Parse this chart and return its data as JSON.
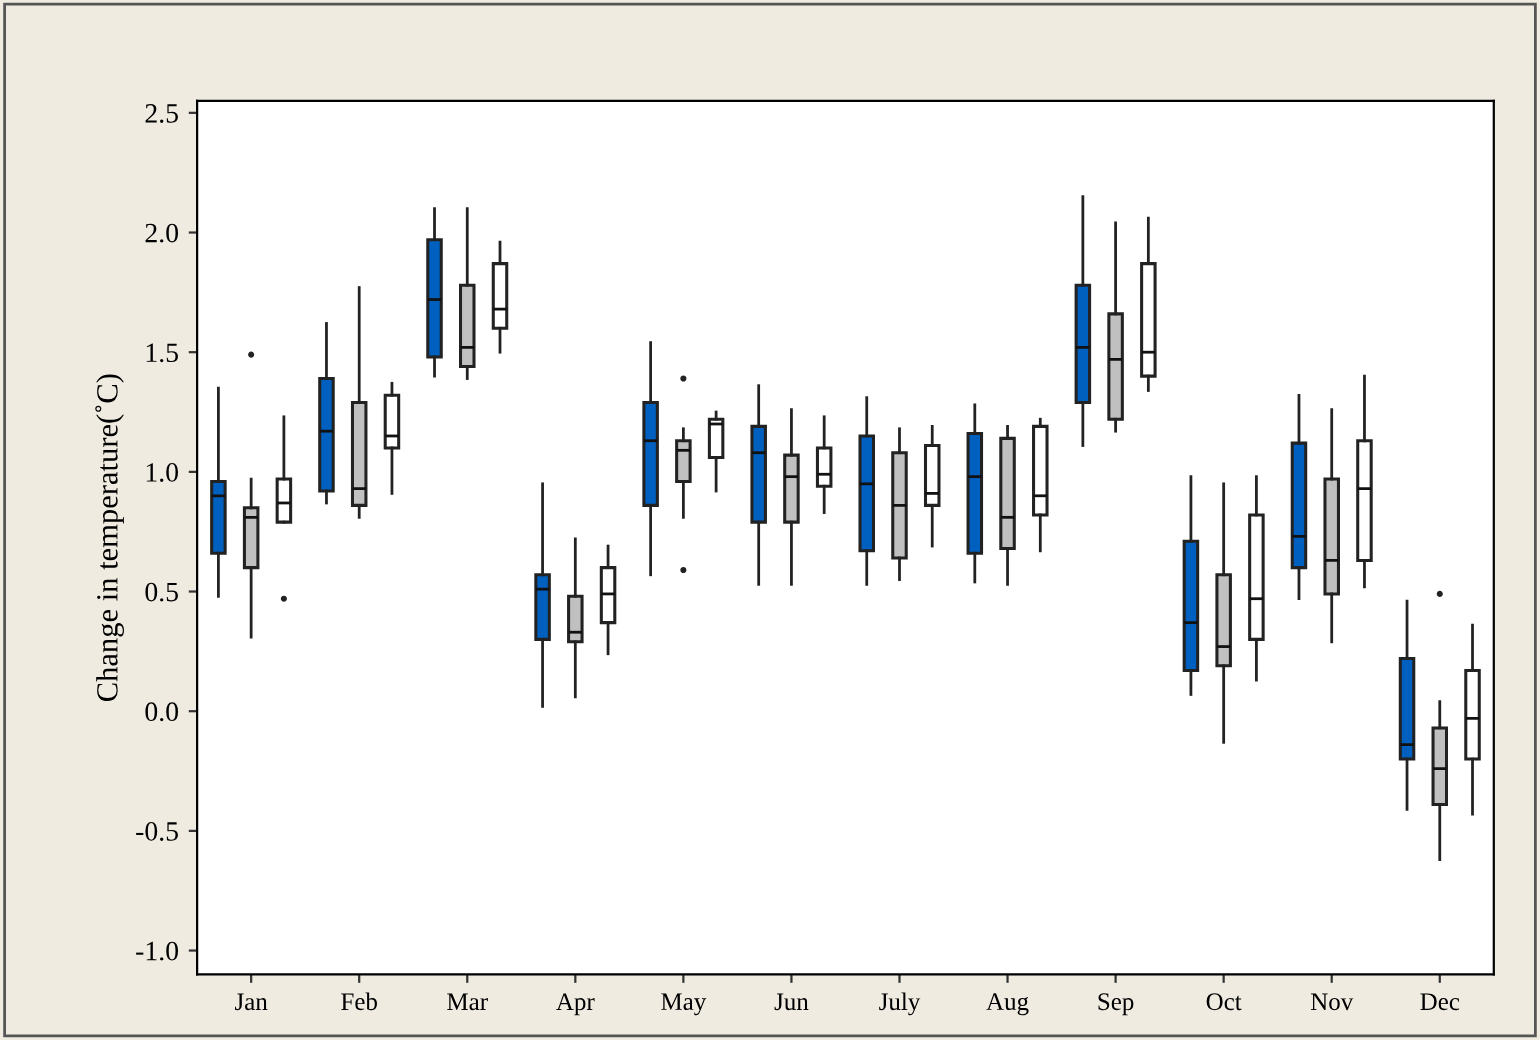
{
  "chart_data": {
    "type": "box",
    "ylabel": "Change in temperature(˚C)",
    "categories": [
      "Jan",
      "Feb",
      "Mar",
      "Apr",
      "May",
      "Jun",
      "July",
      "Aug",
      "Sep",
      "Oct",
      "Nov",
      "Dec"
    ],
    "ylim": [
      -1.1,
      2.55
    ],
    "yticks": [
      {
        "value": -1.0,
        "label": "-1.0"
      },
      {
        "value": -0.5,
        "label": "-0.5"
      },
      {
        "value": 0.0,
        "label": "0.0"
      },
      {
        "value": 0.5,
        "label": "0.5"
      },
      {
        "value": 1.0,
        "label": "1.0"
      },
      {
        "value": 1.5,
        "label": "1.5"
      },
      {
        "value": 2.0,
        "label": "2.0"
      },
      {
        "value": 2.5,
        "label": "2.5"
      }
    ],
    "grid": false,
    "legend": false,
    "series": [
      {
        "color": "#0060c0",
        "boxes": [
          {
            "low": 0.48,
            "q1": 0.66,
            "median": 0.9,
            "q3": 0.96,
            "high": 1.35
          },
          {
            "low": 0.87,
            "q1": 0.92,
            "median": 1.17,
            "q3": 1.39,
            "high": 1.62
          },
          {
            "low": 1.4,
            "q1": 1.48,
            "median": 1.72,
            "q3": 1.97,
            "high": 2.1
          },
          {
            "low": 0.02,
            "q1": 0.3,
            "median": 0.51,
            "q3": 0.57,
            "high": 0.95
          },
          {
            "low": 0.57,
            "q1": 0.86,
            "median": 1.13,
            "q3": 1.29,
            "high": 1.54
          },
          {
            "low": 0.53,
            "q1": 0.79,
            "median": 1.08,
            "q3": 1.19,
            "high": 1.36
          },
          {
            "low": 0.53,
            "q1": 0.67,
            "median": 0.95,
            "q3": 1.15,
            "high": 1.31
          },
          {
            "low": 0.54,
            "q1": 0.66,
            "median": 0.98,
            "q3": 1.16,
            "high": 1.28
          },
          {
            "low": 1.11,
            "q1": 1.29,
            "median": 1.52,
            "q3": 1.78,
            "high": 2.15
          },
          {
            "low": 0.07,
            "q1": 0.17,
            "median": 0.37,
            "q3": 0.71,
            "high": 0.98
          },
          {
            "low": 0.47,
            "q1": 0.6,
            "median": 0.73,
            "q3": 1.12,
            "high": 1.32
          },
          {
            "low": -0.41,
            "q1": -0.2,
            "median": -0.14,
            "q3": 0.22,
            "high": 0.46
          }
        ]
      },
      {
        "color": "#c0c0c0",
        "boxes": [
          {
            "low": 0.31,
            "q1": 0.6,
            "median": 0.81,
            "q3": 0.85,
            "high": 0.97,
            "outliers": [
              1.49
            ]
          },
          {
            "low": 0.81,
            "q1": 0.86,
            "median": 0.93,
            "q3": 1.29,
            "high": 1.77
          },
          {
            "low": 1.39,
            "q1": 1.44,
            "median": 1.52,
            "q3": 1.78,
            "high": 2.1
          },
          {
            "low": 0.06,
            "q1": 0.29,
            "median": 0.33,
            "q3": 0.48,
            "high": 0.72
          },
          {
            "low": 0.81,
            "q1": 0.96,
            "median": 1.09,
            "q3": 1.13,
            "high": 1.18,
            "outliers": [
              1.39,
              0.59
            ]
          },
          {
            "low": 0.53,
            "q1": 0.79,
            "median": 0.98,
            "q3": 1.07,
            "high": 1.26
          },
          {
            "low": 0.55,
            "q1": 0.64,
            "median": 0.86,
            "q3": 1.08,
            "high": 1.18
          },
          {
            "low": 0.53,
            "q1": 0.68,
            "median": 0.81,
            "q3": 1.14,
            "high": 1.19
          },
          {
            "low": 1.17,
            "q1": 1.22,
            "median": 1.47,
            "q3": 1.66,
            "high": 2.04
          },
          {
            "low": -0.13,
            "q1": 0.19,
            "median": 0.27,
            "q3": 0.57,
            "high": 0.95
          },
          {
            "low": 0.29,
            "q1": 0.49,
            "median": 0.63,
            "q3": 0.97,
            "high": 1.26
          },
          {
            "low": -0.62,
            "q1": -0.39,
            "median": -0.24,
            "q3": -0.07,
            "high": 0.04,
            "outliers": [
              0.49
            ]
          }
        ]
      },
      {
        "color": "#ffffff",
        "boxes": [
          {
            "low": 0.79,
            "q1": 0.79,
            "median": 0.87,
            "q3": 0.97,
            "high": 1.23,
            "outliers": [
              0.47
            ]
          },
          {
            "low": 0.91,
            "q1": 1.1,
            "median": 1.15,
            "q3": 1.32,
            "high": 1.37
          },
          {
            "low": 1.5,
            "q1": 1.6,
            "median": 1.68,
            "q3": 1.87,
            "high": 1.96
          },
          {
            "low": 0.24,
            "q1": 0.37,
            "median": 0.49,
            "q3": 0.6,
            "high": 0.69
          },
          {
            "low": 0.92,
            "q1": 1.06,
            "median": 1.2,
            "q3": 1.22,
            "high": 1.25
          },
          {
            "low": 0.83,
            "q1": 0.94,
            "median": 0.99,
            "q3": 1.1,
            "high": 1.23
          },
          {
            "low": 0.69,
            "q1": 0.86,
            "median": 0.91,
            "q3": 1.11,
            "high": 1.19
          },
          {
            "low": 0.67,
            "q1": 0.82,
            "median": 0.9,
            "q3": 1.19,
            "high": 1.22
          },
          {
            "low": 1.34,
            "q1": 1.4,
            "median": 1.5,
            "q3": 1.87,
            "high": 2.06
          },
          {
            "low": 0.13,
            "q1": 0.3,
            "median": 0.47,
            "q3": 0.82,
            "high": 0.98
          },
          {
            "low": 0.52,
            "q1": 0.63,
            "median": 0.93,
            "q3": 1.13,
            "high": 1.4
          },
          {
            "low": -0.43,
            "q1": -0.2,
            "median": -0.03,
            "q3": 0.17,
            "high": 0.36
          }
        ]
      }
    ]
  }
}
